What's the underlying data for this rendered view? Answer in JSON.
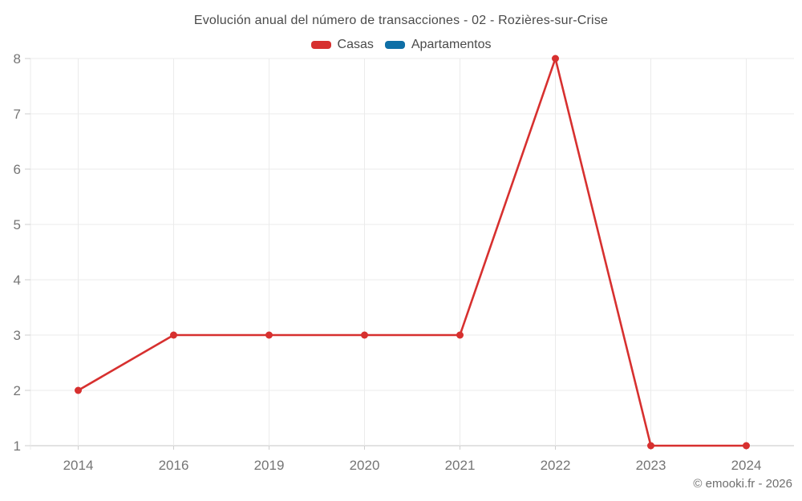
{
  "chart_data": {
    "type": "line",
    "title": "Evolución anual del número de transacciones - 02 - Rozières-sur-Crise",
    "categories": [
      "2014",
      "2016",
      "2019",
      "2020",
      "2021",
      "2022",
      "2023",
      "2024"
    ],
    "series": [
      {
        "name": "Casas",
        "color": "#d7302f",
        "values": [
          2,
          3,
          3,
          3,
          3,
          8,
          1,
          1
        ]
      },
      {
        "name": "Apartamentos",
        "color": "#0f6fa6",
        "values": [
          null,
          null,
          null,
          null,
          null,
          null,
          null,
          null
        ]
      }
    ],
    "ylim": [
      1,
      8
    ],
    "yticks": [
      1,
      2,
      3,
      4,
      5,
      6,
      7,
      8
    ],
    "xlabel": "",
    "ylabel": "",
    "grid": true,
    "legend_position": "top"
  },
  "footer": {
    "text": "© emooki.fr - 2026"
  },
  "colors": {
    "casas": "#d7302f",
    "apartamentos": "#0f6fa6",
    "gridline": "#ebebeb",
    "axis_line": "#c6c6c6",
    "tick_mark": "#cfcfcf",
    "tick_text": "#757575",
    "title_text": "#4a4a4a"
  }
}
